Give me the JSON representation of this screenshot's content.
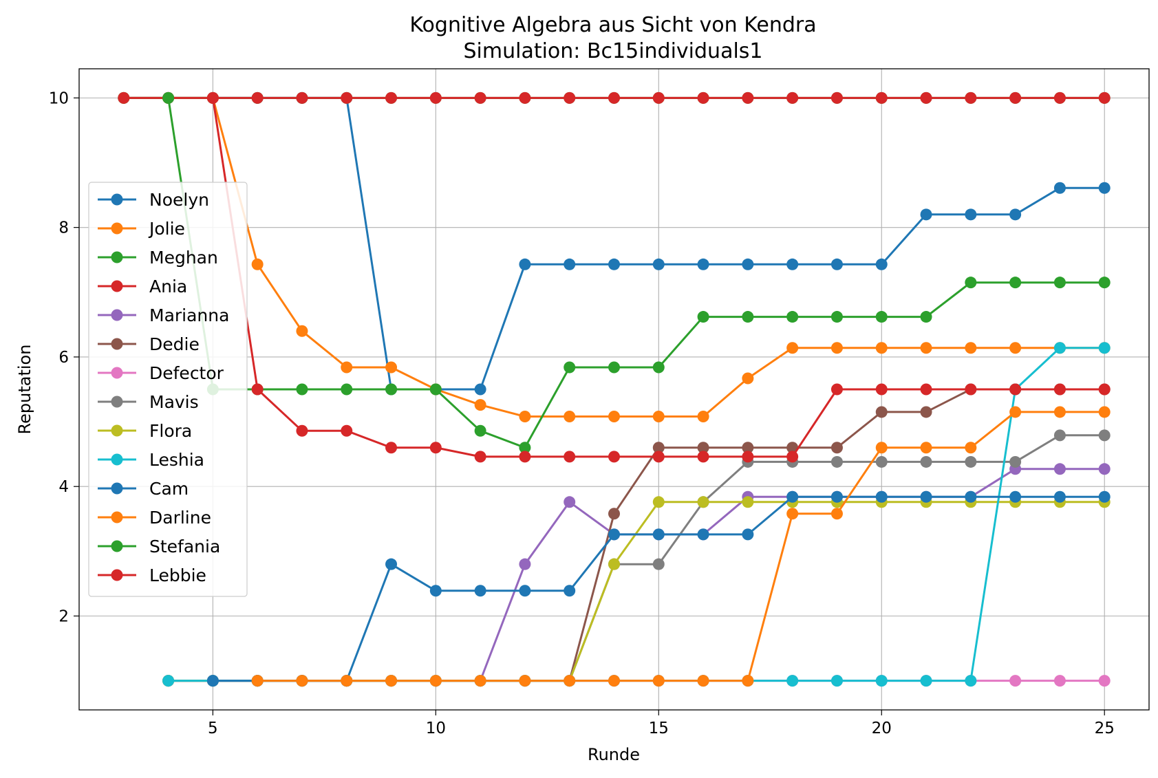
{
  "chart_data": {
    "type": "line",
    "title": "Kognitive Algebra aus Sicht von Kendra",
    "subtitle": "Simulation: Bc15individuals1",
    "xlabel": "Runde",
    "ylabel": "Reputation",
    "xlim": [
      2,
      26
    ],
    "ylim": [
      0.55,
      10.45
    ],
    "xticks": [
      5,
      10,
      15,
      20,
      25
    ],
    "yticks": [
      2,
      4,
      6,
      8,
      10
    ],
    "grid": true,
    "legend_position": "center-left",
    "series": [
      {
        "name": "Noelyn",
        "color": "#1f77b4",
        "points": [
          [
            3,
            10
          ],
          [
            4,
            10
          ],
          [
            5,
            10
          ],
          [
            6,
            10
          ],
          [
            7,
            10
          ],
          [
            8,
            10
          ],
          [
            9,
            5.5
          ],
          [
            10,
            5.5
          ],
          [
            11,
            5.5
          ],
          [
            12,
            7.43
          ],
          [
            13,
            7.43
          ],
          [
            14,
            7.43
          ],
          [
            15,
            7.43
          ],
          [
            16,
            7.43
          ],
          [
            17,
            7.43
          ],
          [
            18,
            7.43
          ],
          [
            19,
            7.43
          ],
          [
            20,
            7.43
          ],
          [
            21,
            8.2
          ],
          [
            22,
            8.2
          ],
          [
            23,
            8.2
          ],
          [
            24,
            8.61
          ],
          [
            25,
            8.61
          ]
        ]
      },
      {
        "name": "Jolie",
        "color": "#ff7f0e",
        "points": [
          [
            3,
            10
          ],
          [
            4,
            10
          ],
          [
            5,
            10
          ],
          [
            6,
            7.43
          ],
          [
            7,
            6.4
          ],
          [
            8,
            5.84
          ],
          [
            9,
            5.84
          ],
          [
            10,
            5.5
          ],
          [
            11,
            5.26
          ],
          [
            12,
            5.08
          ],
          [
            13,
            5.08
          ],
          [
            14,
            5.08
          ],
          [
            15,
            5.08
          ],
          [
            16,
            5.08
          ],
          [
            17,
            5.67
          ],
          [
            18,
            6.14
          ],
          [
            19,
            6.14
          ],
          [
            20,
            6.14
          ],
          [
            21,
            6.14
          ],
          [
            22,
            6.14
          ],
          [
            23,
            6.14
          ],
          [
            24,
            6.14
          ],
          [
            25,
            6.14
          ]
        ]
      },
      {
        "name": "Meghan",
        "color": "#2ca02c",
        "points": [
          [
            3,
            10
          ],
          [
            4,
            10
          ],
          [
            5,
            10
          ],
          [
            6,
            10
          ],
          [
            7,
            10
          ],
          [
            8,
            10
          ],
          [
            9,
            10
          ],
          [
            10,
            10
          ],
          [
            11,
            10
          ],
          [
            12,
            10
          ],
          [
            13,
            10
          ],
          [
            14,
            10
          ],
          [
            15,
            10
          ],
          [
            16,
            10
          ],
          [
            17,
            10
          ],
          [
            18,
            10
          ],
          [
            19,
            10
          ],
          [
            20,
            10
          ],
          [
            21,
            10
          ],
          [
            22,
            10
          ],
          [
            23,
            10
          ],
          [
            24,
            10
          ],
          [
            25,
            10
          ]
        ]
      },
      {
        "name": "Ania",
        "color": "#d62728",
        "points": [
          [
            3,
            10
          ],
          [
            4,
            10
          ],
          [
            5,
            10
          ],
          [
            6,
            10
          ],
          [
            7,
            10
          ],
          [
            8,
            10
          ],
          [
            9,
            10
          ],
          [
            10,
            10
          ],
          [
            11,
            10
          ],
          [
            12,
            10
          ],
          [
            13,
            10
          ],
          [
            14,
            10
          ],
          [
            15,
            10
          ],
          [
            16,
            10
          ],
          [
            17,
            10
          ],
          [
            18,
            10
          ],
          [
            19,
            10
          ],
          [
            20,
            10
          ],
          [
            21,
            10
          ],
          [
            22,
            10
          ],
          [
            23,
            10
          ],
          [
            24,
            10
          ],
          [
            25,
            10
          ]
        ]
      },
      {
        "name": "Marianna",
        "color": "#9467bd",
        "points": [
          [
            4,
            1
          ],
          [
            5,
            1
          ],
          [
            6,
            1
          ],
          [
            7,
            1
          ],
          [
            8,
            1
          ],
          [
            9,
            1
          ],
          [
            10,
            1
          ],
          [
            11,
            1
          ],
          [
            12,
            2.8
          ],
          [
            13,
            3.76
          ],
          [
            14,
            3.26
          ],
          [
            15,
            3.26
          ],
          [
            16,
            3.26
          ],
          [
            17,
            3.84
          ],
          [
            18,
            3.84
          ],
          [
            19,
            3.84
          ],
          [
            20,
            3.84
          ],
          [
            21,
            3.84
          ],
          [
            22,
            3.84
          ],
          [
            23,
            4.27
          ],
          [
            24,
            4.27
          ],
          [
            25,
            4.27
          ]
        ]
      },
      {
        "name": "Dedie",
        "color": "#8c564b",
        "points": [
          [
            4,
            1
          ],
          [
            5,
            1
          ],
          [
            6,
            1
          ],
          [
            7,
            1
          ],
          [
            8,
            1
          ],
          [
            9,
            1
          ],
          [
            10,
            1
          ],
          [
            11,
            1
          ],
          [
            12,
            1
          ],
          [
            13,
            1
          ],
          [
            14,
            3.58
          ],
          [
            15,
            4.6
          ],
          [
            16,
            4.6
          ],
          [
            17,
            4.6
          ],
          [
            18,
            4.6
          ],
          [
            19,
            4.6
          ],
          [
            20,
            5.15
          ],
          [
            21,
            5.15
          ],
          [
            22,
            5.5
          ],
          [
            23,
            5.5
          ],
          [
            24,
            5.5
          ],
          [
            25,
            5.5
          ]
        ]
      },
      {
        "name": "Defector",
        "color": "#e377c2",
        "points": [
          [
            4,
            1
          ],
          [
            5,
            1
          ],
          [
            6,
            1
          ],
          [
            7,
            1
          ],
          [
            8,
            1
          ],
          [
            9,
            1
          ],
          [
            10,
            1
          ],
          [
            11,
            1
          ],
          [
            12,
            1
          ],
          [
            13,
            1
          ],
          [
            14,
            1
          ],
          [
            15,
            1
          ],
          [
            16,
            1
          ],
          [
            17,
            1
          ],
          [
            18,
            1
          ],
          [
            19,
            1
          ],
          [
            20,
            1
          ],
          [
            21,
            1
          ],
          [
            22,
            1
          ],
          [
            23,
            1
          ],
          [
            24,
            1
          ],
          [
            25,
            1
          ]
        ]
      },
      {
        "name": "Mavis",
        "color": "#7f7f7f",
        "points": [
          [
            4,
            1
          ],
          [
            5,
            1
          ],
          [
            6,
            1
          ],
          [
            7,
            1
          ],
          [
            8,
            1
          ],
          [
            9,
            1
          ],
          [
            10,
            1
          ],
          [
            11,
            1
          ],
          [
            12,
            1
          ],
          [
            13,
            1
          ],
          [
            14,
            2.8
          ],
          [
            15,
            2.8
          ],
          [
            16,
            3.76
          ],
          [
            17,
            4.38
          ],
          [
            18,
            4.38
          ],
          [
            19,
            4.38
          ],
          [
            20,
            4.38
          ],
          [
            21,
            4.38
          ],
          [
            22,
            4.38
          ],
          [
            23,
            4.38
          ],
          [
            24,
            4.79
          ],
          [
            25,
            4.79
          ]
        ]
      },
      {
        "name": "Flora",
        "color": "#bcbd22",
        "points": [
          [
            4,
            1
          ],
          [
            5,
            1
          ],
          [
            6,
            1
          ],
          [
            7,
            1
          ],
          [
            8,
            1
          ],
          [
            9,
            1
          ],
          [
            10,
            1
          ],
          [
            11,
            1
          ],
          [
            12,
            1
          ],
          [
            13,
            1
          ],
          [
            14,
            2.8
          ],
          [
            15,
            3.76
          ],
          [
            16,
            3.76
          ],
          [
            17,
            3.76
          ],
          [
            18,
            3.76
          ],
          [
            19,
            3.76
          ],
          [
            20,
            3.76
          ],
          [
            21,
            3.76
          ],
          [
            22,
            3.76
          ],
          [
            23,
            3.76
          ],
          [
            24,
            3.76
          ],
          [
            25,
            3.76
          ]
        ]
      },
      {
        "name": "Leshia",
        "color": "#17becf",
        "points": [
          [
            4,
            1
          ],
          [
            5,
            1
          ],
          [
            6,
            1
          ],
          [
            7,
            1
          ],
          [
            8,
            1
          ],
          [
            9,
            1
          ],
          [
            10,
            1
          ],
          [
            11,
            1
          ],
          [
            12,
            1
          ],
          [
            13,
            1
          ],
          [
            14,
            1
          ],
          [
            15,
            1
          ],
          [
            16,
            1
          ],
          [
            17,
            1
          ],
          [
            18,
            1
          ],
          [
            19,
            1
          ],
          [
            20,
            1
          ],
          [
            21,
            1
          ],
          [
            22,
            1
          ],
          [
            23,
            5.5
          ],
          [
            24,
            6.14
          ],
          [
            25,
            6.14
          ]
        ]
      },
      {
        "name": "Cam",
        "color": "#1f77b4",
        "points": [
          [
            5,
            1
          ],
          [
            6,
            1
          ],
          [
            7,
            1
          ],
          [
            8,
            1
          ],
          [
            9,
            2.8
          ],
          [
            10,
            2.39
          ],
          [
            11,
            2.39
          ],
          [
            12,
            2.39
          ],
          [
            13,
            2.39
          ],
          [
            14,
            3.26
          ],
          [
            15,
            3.26
          ],
          [
            16,
            3.26
          ],
          [
            17,
            3.26
          ],
          [
            18,
            3.84
          ],
          [
            19,
            3.84
          ],
          [
            20,
            3.84
          ],
          [
            21,
            3.84
          ],
          [
            22,
            3.84
          ],
          [
            23,
            3.84
          ],
          [
            24,
            3.84
          ],
          [
            25,
            3.84
          ]
        ]
      },
      {
        "name": "Darline",
        "color": "#ff7f0e",
        "points": [
          [
            6,
            1
          ],
          [
            7,
            1
          ],
          [
            8,
            1
          ],
          [
            9,
            1
          ],
          [
            10,
            1
          ],
          [
            11,
            1
          ],
          [
            12,
            1
          ],
          [
            13,
            1
          ],
          [
            14,
            1
          ],
          [
            15,
            1
          ],
          [
            16,
            1
          ],
          [
            17,
            1
          ],
          [
            18,
            3.58
          ],
          [
            19,
            3.58
          ],
          [
            20,
            4.6
          ],
          [
            21,
            4.6
          ],
          [
            22,
            4.6
          ],
          [
            23,
            5.15
          ],
          [
            24,
            5.15
          ],
          [
            25,
            5.15
          ]
        ]
      },
      {
        "name": "Stefania",
        "color": "#2ca02c",
        "points": [
          [
            4,
            10
          ],
          [
            5,
            5.5
          ],
          [
            6,
            5.5
          ],
          [
            7,
            5.5
          ],
          [
            8,
            5.5
          ],
          [
            9,
            5.5
          ],
          [
            10,
            5.5
          ],
          [
            11,
            4.86
          ],
          [
            12,
            4.6
          ],
          [
            13,
            5.84
          ],
          [
            14,
            5.84
          ],
          [
            15,
            5.84
          ],
          [
            16,
            6.62
          ],
          [
            17,
            6.62
          ],
          [
            18,
            6.62
          ],
          [
            19,
            6.62
          ],
          [
            20,
            6.62
          ],
          [
            21,
            6.62
          ],
          [
            22,
            7.15
          ],
          [
            23,
            7.15
          ],
          [
            24,
            7.15
          ],
          [
            25,
            7.15
          ]
        ]
      },
      {
        "name": "Lebbie",
        "color": "#d62728",
        "points": [
          [
            5,
            10
          ],
          [
            6,
            5.5
          ],
          [
            7,
            4.86
          ],
          [
            8,
            4.86
          ],
          [
            9,
            4.6
          ],
          [
            10,
            4.6
          ],
          [
            11,
            4.46
          ],
          [
            12,
            4.46
          ],
          [
            13,
            4.46
          ],
          [
            14,
            4.46
          ],
          [
            15,
            4.46
          ],
          [
            16,
            4.46
          ],
          [
            17,
            4.46
          ],
          [
            18,
            4.46
          ],
          [
            19,
            5.5
          ],
          [
            20,
            5.5
          ],
          [
            21,
            5.5
          ],
          [
            22,
            5.5
          ],
          [
            23,
            5.5
          ],
          [
            24,
            5.5
          ],
          [
            25,
            5.5
          ]
        ]
      }
    ]
  }
}
